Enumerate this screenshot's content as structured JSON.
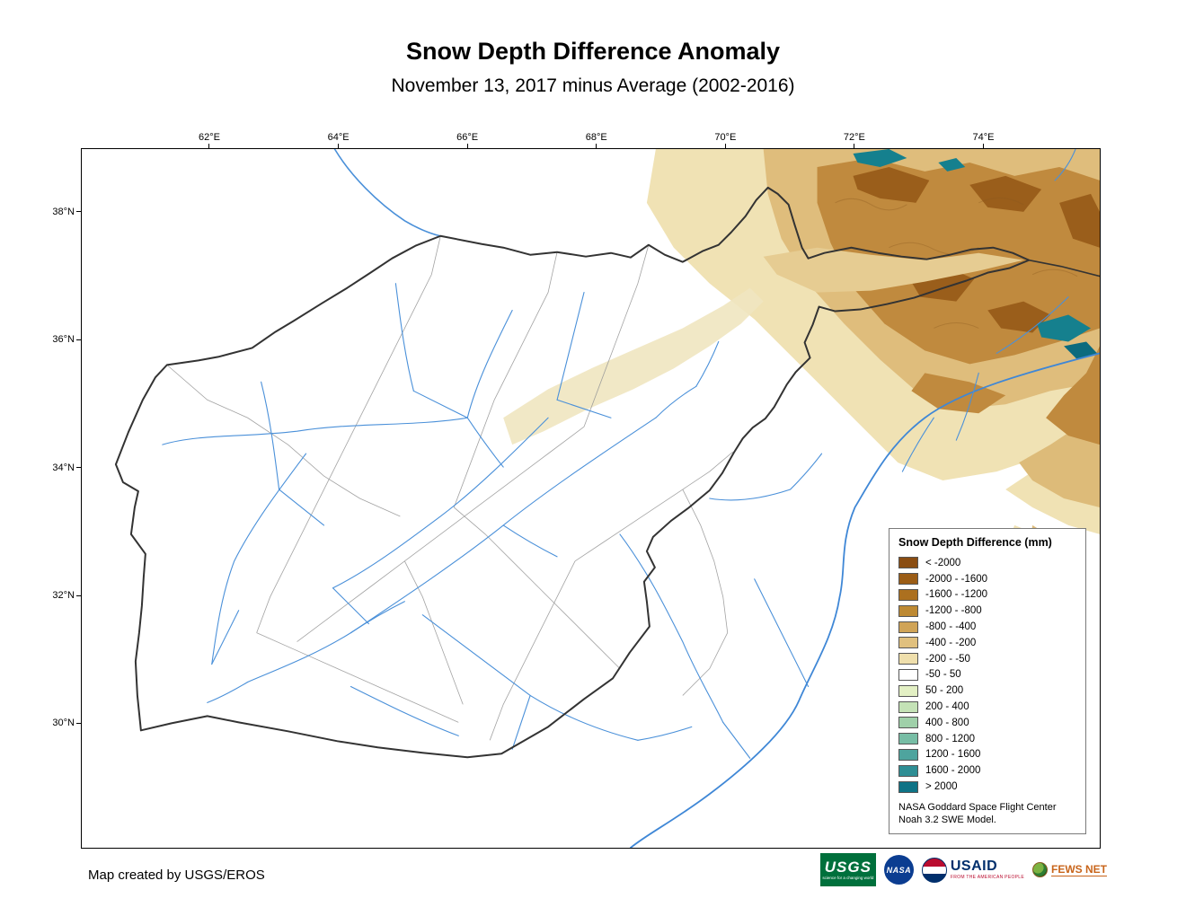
{
  "header": {
    "title": "Snow Depth Difference Anomaly",
    "subtitle": "November 13, 2017 minus Average (2002-2016)"
  },
  "map": {
    "lon_ticks": [
      "62°E",
      "64°E",
      "66°E",
      "68°E",
      "70°E",
      "72°E",
      "74°E"
    ],
    "lat_ticks": [
      "38°N",
      "36°N",
      "34°N",
      "32°N",
      "30°N"
    ]
  },
  "legend": {
    "title": "Snow Depth Difference (mm)",
    "entries": [
      {
        "label": "< -2000",
        "color": "#8A4D12"
      },
      {
        "label": "-2000 - -1600",
        "color": "#9B5D16"
      },
      {
        "label": "-1600 - -1200",
        "color": "#AC701F"
      },
      {
        "label": "-1200 - -800",
        "color": "#BE8A33"
      },
      {
        "label": "-800 - -400",
        "color": "#D0A457"
      },
      {
        "label": "-400 - -200",
        "color": "#E0C07E"
      },
      {
        "label": "-200 - -50",
        "color": "#EFDFAC"
      },
      {
        "label": "-50 - 50",
        "color": "#FFFFFF"
      },
      {
        "label": "50 - 200",
        "color": "#E3F0C4"
      },
      {
        "label": "200 - 400",
        "color": "#C4E2B6"
      },
      {
        "label": "400 - 800",
        "color": "#9FD0A9"
      },
      {
        "label": "800 - 1200",
        "color": "#77BDA5"
      },
      {
        "label": "1200 - 1600",
        "color": "#4EA49E"
      },
      {
        "label": "1600 - 2000",
        "color": "#2E8E94"
      },
      {
        "label": "> 2000",
        "color": "#0E7386"
      }
    ],
    "footnote": [
      "NASA Goddard Space Flight Center",
      "Noah 3.2 SWE Model."
    ]
  },
  "credit": "Map created by USGS/EROS",
  "logos": {
    "usgs": {
      "name": "USGS",
      "tagline": "science for a changing world"
    },
    "nasa": {
      "name": "NASA"
    },
    "usaid": {
      "name": "USAID",
      "tagline": "FROM THE AMERICAN PEOPLE"
    },
    "fews": {
      "name": "FEWS NET"
    }
  },
  "colors": {
    "river": "#4a90d9",
    "country_border": "#333333",
    "province_border": "#999999"
  }
}
